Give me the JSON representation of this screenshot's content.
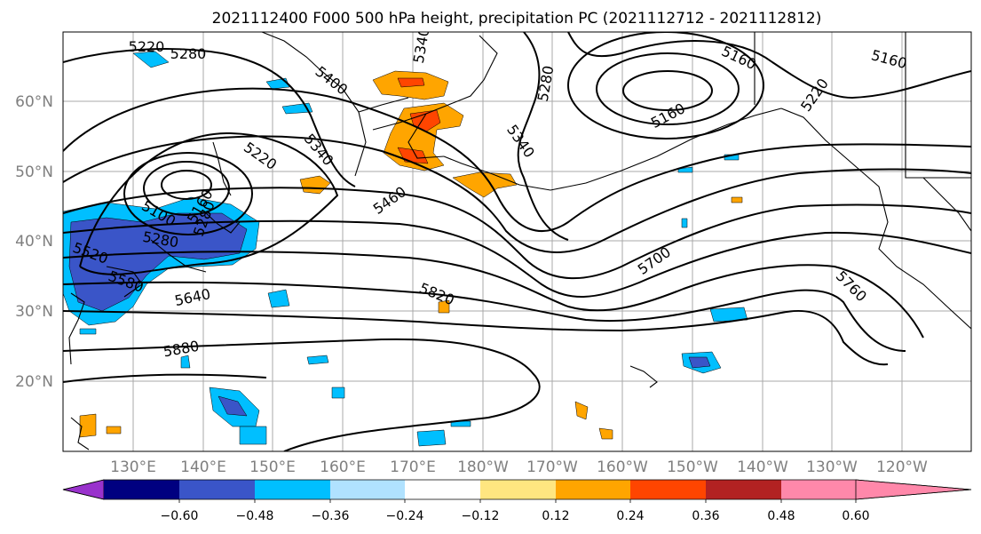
{
  "title": "2021112400 F000 500 hPa height, precipitation PC (2021112712 - 2021112812)",
  "lon_labels": [
    "130°E",
    "140°E",
    "150°E",
    "160°E",
    "170°E",
    "180°W",
    "170°W",
    "160°W",
    "150°W",
    "140°W",
    "130°W",
    "120°W"
  ],
  "lat_labels": [
    "60°N",
    "50°N",
    "40°N",
    "30°N",
    "20°N"
  ],
  "contour_labels": [
    "5220",
    "5280",
    "5400",
    "5340",
    "5220",
    "5160",
    "5280",
    "5340",
    "5160",
    "5160",
    "5220",
    "5280",
    "5460",
    "5280",
    "5520",
    "5580",
    "5640",
    "5700",
    "5760",
    "5820",
    "5880",
    "5100",
    "5160",
    "5340"
  ],
  "colorbar": {
    "tick_labels": [
      "−0.60",
      "−0.48",
      "−0.36",
      "−0.24",
      "−0.12",
      "0.12",
      "0.24",
      "0.36",
      "0.48",
      "0.60"
    ],
    "colors": [
      "#9932cc",
      "#000080",
      "#3a55c8",
      "#00bfff",
      "#b0e2ff",
      "#ffffff",
      "#ffe680",
      "#ffa500",
      "#ff4500",
      "#b22222",
      "#ff88aa"
    ]
  }
}
